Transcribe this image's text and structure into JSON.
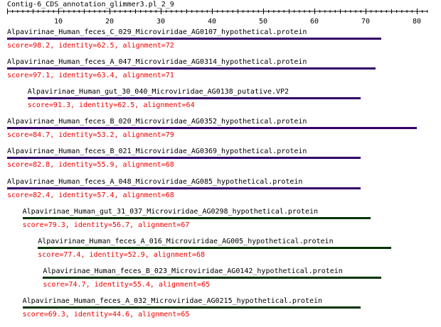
{
  "title": "Contig-6_CDS_annotation_glimmer3.pl_2_9",
  "colors": {
    "axis": "#000000",
    "text": "#000000",
    "stats": "#ee0000",
    "bar_purple": "#330066",
    "bar_green": "#003300"
  },
  "axis": {
    "min": 0,
    "max": 82,
    "ticks": [
      10,
      20,
      30,
      40,
      50,
      60,
      70,
      80
    ]
  },
  "hits": [
    {
      "name": "Alpavirinae_Human_feces_C_029_Microviridae_AG0107_hypothetical.protein",
      "stats": "score=98.2, identity=62.5, alignment=72",
      "start": 0,
      "end": 73,
      "color": "bar_purple"
    },
    {
      "name": "Alpavirinae_Human_feces_A_047_Microviridae_AG0314_hypothetical.protein",
      "stats": "score=97.1, identity=63.4, alignment=71",
      "start": 0,
      "end": 72,
      "color": "bar_purple"
    },
    {
      "name": "Alpavirinae_Human_gut_30_040_Microviridae_AG0138_putative.VP2",
      "stats": "score=91.3, identity=62.5, alignment=64",
      "start": 4,
      "end": 69,
      "color": "bar_purple"
    },
    {
      "name": "Alpavirinae_Human_feces_B_020_Microviridae_AG0352_hypothetical.protein",
      "stats": "score=84.7, identity=53.2, alignment=79",
      "start": 0,
      "end": 80,
      "color": "bar_purple"
    },
    {
      "name": "Alpavirinae_Human_feces_B_021_Microviridae_AG0369_hypothetical.protein",
      "stats": "score=82.8, identity=55.9, alignment=68",
      "start": 0,
      "end": 69,
      "color": "bar_purple"
    },
    {
      "name": "Alpavirinae_Human_feces_A_048_Microviridae_AG085_hypothetical.protein",
      "stats": "score=82.4, identity=57.4, alignment=68",
      "start": 0,
      "end": 69,
      "color": "bar_purple"
    },
    {
      "name": "Alpavirinae_Human_gut_31_037_Microviridae_AG0298_hypothetical.protein",
      "stats": "score=79.3, identity=56.7, alignment=67",
      "start": 3,
      "end": 71,
      "color": "bar_green"
    },
    {
      "name": "Alpavirinae_Human_feces_A_016_Microviridae_AG005_hypothetical.protein",
      "stats": "score=77.4, identity=52.9, alignment=68",
      "start": 6,
      "end": 75,
      "color": "bar_green"
    },
    {
      "name": "Alpavirinae_Human_feces_B_023_Microviridae_AG0142_hypothetical.protein",
      "stats": "score=74.7, identity=55.4, alignment=65",
      "start": 7,
      "end": 73,
      "color": "bar_green"
    },
    {
      "name": "Alpavirinae_Human_feces_A_032_Microviridae_AG0215_hypothetical.protein",
      "stats": "score=69.3, identity=44.6, alignment=65",
      "start": 3,
      "end": 69,
      "color": "bar_green"
    }
  ]
}
